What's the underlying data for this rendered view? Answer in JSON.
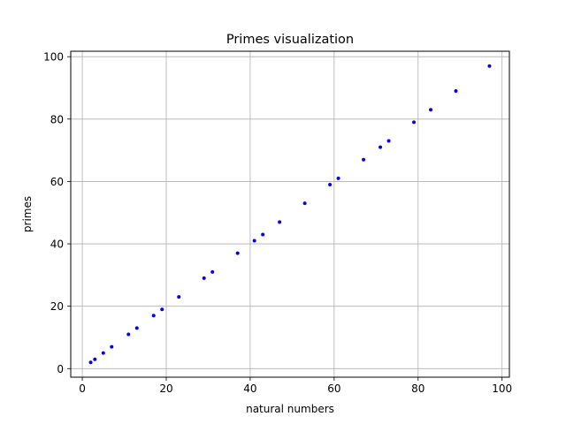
{
  "chart_data": {
    "type": "scatter",
    "title": "Primes visualization",
    "xlabel": "natural numbers",
    "ylabel": "primes",
    "xlim": [
      -2.75,
      101.75
    ],
    "ylim": [
      -2.75,
      101.75
    ],
    "xticks": [
      0,
      20,
      40,
      60,
      80,
      100
    ],
    "yticks": [
      0,
      20,
      40,
      60,
      80,
      100
    ],
    "xtick_labels": [
      "0",
      "20",
      "40",
      "60",
      "80",
      "100"
    ],
    "ytick_labels": [
      "0",
      "20",
      "40",
      "60",
      "80",
      "100"
    ],
    "grid": true,
    "marker_color": "#0000ff",
    "grid_color": "#b0b0b0",
    "series": [
      {
        "x": [
          2,
          3,
          5,
          7,
          11,
          13,
          17,
          19,
          23,
          29,
          31,
          37,
          41,
          43,
          47,
          53,
          59,
          61,
          67,
          71,
          73,
          79,
          83,
          89,
          97
        ],
        "y": [
          2,
          3,
          5,
          7,
          11,
          13,
          17,
          19,
          23,
          29,
          31,
          37,
          41,
          43,
          47,
          53,
          59,
          61,
          67,
          71,
          73,
          79,
          83,
          89,
          97
        ]
      }
    ]
  }
}
